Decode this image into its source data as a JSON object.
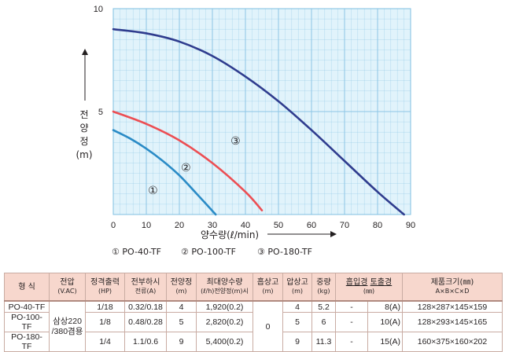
{
  "chart_data": {
    "type": "line",
    "xlabel": "양수량(ℓ/min)",
    "ylabel": [
      "전",
      "양",
      "정",
      "(m)"
    ],
    "xlim": [
      0,
      90
    ],
    "ylim": [
      0,
      10
    ],
    "x_ticks": [
      "0",
      "10",
      "20",
      "30",
      "40",
      "50",
      "60",
      "70",
      "80",
      "90"
    ],
    "y_ticks": [
      "10",
      "5"
    ],
    "grid": true,
    "background": "#e1f3fb",
    "grid_color": "#8dc6e6",
    "series": [
      {
        "name": "PO-40-TF",
        "marker": "①",
        "color": "#2a8bc6",
        "x": [
          0,
          5,
          10,
          15,
          20,
          25,
          31
        ],
        "y": [
          4.1,
          3.7,
          3.2,
          2.6,
          1.9,
          1.05,
          0
        ]
      },
      {
        "name": "PO-100-TF",
        "marker": "②",
        "color": "#ec4e53",
        "x": [
          0,
          10,
          20,
          30,
          40,
          45
        ],
        "y": [
          5.0,
          4.4,
          3.6,
          2.5,
          1.1,
          0.2
        ]
      },
      {
        "name": "PO-180-TF",
        "marker": "③",
        "color": "#2f3c8e",
        "x": [
          0,
          10,
          20,
          30,
          40,
          50,
          60,
          70,
          80,
          88
        ],
        "y": [
          9.0,
          8.8,
          8.4,
          7.7,
          6.7,
          5.5,
          4.1,
          2.6,
          1.1,
          0
        ]
      }
    ]
  },
  "legend": [
    {
      "marker": "①",
      "label": "PO-40-TF"
    },
    {
      "marker": "②",
      "label": "PO-100-TF"
    },
    {
      "marker": "③",
      "label": "PO-180-TF"
    }
  ],
  "table": {
    "headers": {
      "model": "형 식",
      "voltage": "전압",
      "voltage_unit": "(V.AC)",
      "output": "정격출력",
      "output_unit": "(HP)",
      "current": "전부하시",
      "current_unit": "전류(A)",
      "head": "전양정",
      "head_unit": "(m)",
      "max_flow": "최대양수량",
      "max_flow_unit": "(ℓ/h)전양정(m)시",
      "suction": "흡상고",
      "suction_unit": "(m)",
      "push": "압상고",
      "push_unit": "(m)",
      "weight": "중량",
      "weight_unit": "(kg)",
      "inlet": "흡입경",
      "outlet": "토출경",
      "bore_unit": "(㎜)",
      "size": "제품크기(㎜)",
      "size_unit": "A×B×C×D"
    },
    "voltage_value": "삼상220 /380겸용",
    "suction_value": "0",
    "rows": [
      {
        "model": "PO-40-TF",
        "output": "1/18",
        "current": "0.32/0.18",
        "head": "4",
        "max_flow": "1,920(0.2)",
        "push": "4",
        "weight": "5.2",
        "inlet": "-",
        "outlet": "8(A)",
        "size": "128×287×145×159"
      },
      {
        "model": "PO-100-TF",
        "output": "1/8",
        "current": "0.48/0.28",
        "head": "5",
        "max_flow": "2,820(0.2)",
        "push": "5",
        "weight": "6",
        "inlet": "-",
        "outlet": "10(A)",
        "size": "128×293×145×165"
      },
      {
        "model": "PO-180-TF",
        "output": "1/4",
        "current": "1.1/0.6",
        "head": "9",
        "max_flow": "5,400(0.2)",
        "push": "9",
        "weight": "11.3",
        "inlet": "-",
        "outlet": "15(A)",
        "size": "160×375×160×202"
      }
    ]
  }
}
